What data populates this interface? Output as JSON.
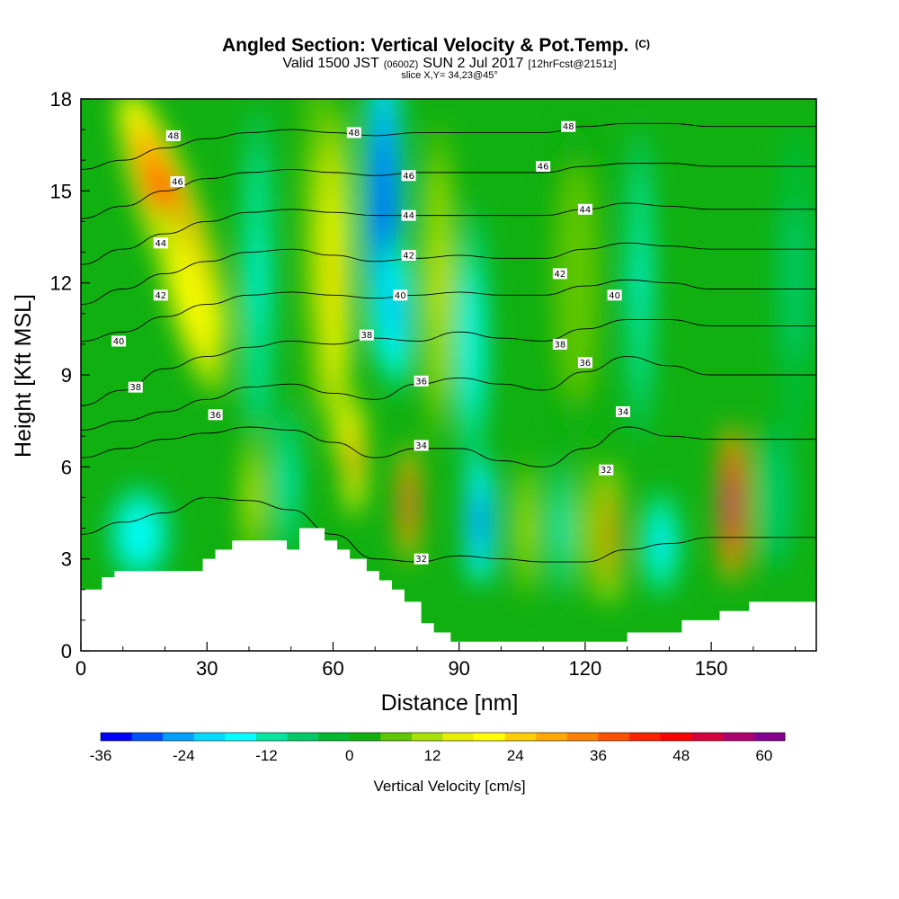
{
  "chart_data": {
    "type": "contour",
    "title": "Angled Section: Vertical Velocity & Pot.Temp.",
    "title_mark": "(C)",
    "subtitle": {
      "valid": "Valid 1500 JST",
      "utc": "(0600Z)",
      "date": "SUN 2 Jul 2017",
      "forecast": "[12hrFcst@2151z]"
    },
    "slice_label": "slice X,Y= 34,23@45°",
    "xlabel": "Distance [nm]",
    "ylabel": "Height [Kft MSL]",
    "xlim": [
      0,
      175
    ],
    "ylim": [
      0,
      18
    ],
    "x_ticks": [
      0,
      30,
      60,
      90,
      120,
      150
    ],
    "y_ticks": [
      0,
      3,
      6,
      9,
      12,
      15,
      18
    ],
    "colorbar": {
      "label": "Vertical Velocity [cm/s]",
      "min": -36,
      "max": 63,
      "step": 4.5,
      "tick_values": [
        -36,
        -24,
        -12,
        0,
        12,
        24,
        36,
        48,
        60
      ],
      "colors": [
        "#0000ff",
        "#0050ff",
        "#00a0ff",
        "#00dcff",
        "#00ffff",
        "#00e8a0",
        "#00cc66",
        "#00bb30",
        "#10b010",
        "#60c800",
        "#a8e000",
        "#e8f000",
        "#ffff00",
        "#ffd000",
        "#ffa800",
        "#ff8000",
        "#ff5000",
        "#ff2000",
        "#ff0000",
        "#d8003a",
        "#b00070",
        "#860090"
      ]
    },
    "terrain": [
      [
        0,
        2.0
      ],
      [
        5,
        2.0
      ],
      [
        5,
        2.4
      ],
      [
        8,
        2.4
      ],
      [
        8,
        2.6
      ],
      [
        29,
        2.6
      ],
      [
        29,
        3.0
      ],
      [
        32,
        3.0
      ],
      [
        32,
        3.3
      ],
      [
        36,
        3.3
      ],
      [
        36,
        3.6
      ],
      [
        49,
        3.6
      ],
      [
        49,
        3.3
      ],
      [
        52,
        3.3
      ],
      [
        52,
        4.0
      ],
      [
        58,
        4.0
      ],
      [
        58,
        3.6
      ],
      [
        61,
        3.6
      ],
      [
        61,
        3.3
      ],
      [
        64,
        3.3
      ],
      [
        64,
        3.0
      ],
      [
        68,
        3.0
      ],
      [
        68,
        2.6
      ],
      [
        71,
        2.6
      ],
      [
        71,
        2.3
      ],
      [
        74,
        2.3
      ],
      [
        74,
        2.0
      ],
      [
        77,
        2.0
      ],
      [
        77,
        1.6
      ],
      [
        81,
        1.6
      ],
      [
        81,
        0.9
      ],
      [
        84,
        0.9
      ],
      [
        84,
        0.6
      ],
      [
        88,
        0.6
      ],
      [
        88,
        0.3
      ],
      [
        130,
        0.3
      ],
      [
        130,
        0.6
      ],
      [
        143,
        0.6
      ],
      [
        143,
        1.0
      ],
      [
        152,
        1.0
      ],
      [
        152,
        1.3
      ],
      [
        159,
        1.3
      ],
      [
        159,
        1.6
      ],
      [
        175,
        1.6
      ]
    ],
    "theta_series": [
      {
        "name": "32",
        "x": [
          0,
          10,
          20,
          30,
          40,
          50,
          60,
          70,
          80,
          90,
          100,
          110,
          120,
          130,
          140,
          150,
          160,
          175
        ],
        "y": [
          3.8,
          4.2,
          4.5,
          5.0,
          4.9,
          4.6,
          3.8,
          3.0,
          2.9,
          3.1,
          3.0,
          2.9,
          2.9,
          3.3,
          3.5,
          3.7,
          3.7,
          3.7
        ]
      },
      {
        "name": "34",
        "x": [
          0,
          10,
          20,
          30,
          40,
          50,
          60,
          70,
          80,
          90,
          100,
          110,
          120,
          130,
          140,
          150,
          160,
          175
        ],
        "y": [
          6.3,
          6.6,
          6.9,
          7.1,
          7.3,
          7.2,
          6.8,
          6.3,
          6.6,
          6.6,
          6.2,
          6.0,
          6.6,
          7.3,
          7.0,
          6.9,
          6.9,
          6.9
        ]
      },
      {
        "name": "36",
        "x": [
          0,
          10,
          20,
          30,
          40,
          50,
          60,
          70,
          80,
          90,
          100,
          110,
          120,
          130,
          140,
          150,
          160,
          175
        ],
        "y": [
          7.2,
          7.5,
          7.8,
          8.2,
          8.6,
          8.7,
          8.4,
          8.2,
          8.7,
          8.9,
          8.7,
          8.5,
          9.1,
          9.6,
          9.3,
          9.0,
          9.0,
          9.0
        ]
      },
      {
        "name": "38",
        "x": [
          0,
          10,
          20,
          30,
          40,
          50,
          60,
          70,
          80,
          90,
          100,
          110,
          120,
          130,
          140,
          150,
          160,
          175
        ],
        "y": [
          8.0,
          8.5,
          9.2,
          9.6,
          9.9,
          10.1,
          10.0,
          10.2,
          10.1,
          10.4,
          10.2,
          10.1,
          10.5,
          10.8,
          10.8,
          10.6,
          10.6,
          10.6
        ]
      },
      {
        "name": "40",
        "x": [
          0,
          10,
          20,
          30,
          40,
          50,
          60,
          70,
          80,
          90,
          100,
          110,
          120,
          130,
          140,
          150,
          160,
          175
        ],
        "y": [
          10.1,
          10.4,
          10.9,
          11.3,
          11.6,
          11.7,
          11.6,
          11.5,
          11.6,
          11.7,
          11.6,
          11.6,
          11.9,
          12.1,
          12.0,
          11.8,
          11.8,
          11.8
        ]
      },
      {
        "name": "42",
        "x": [
          0,
          10,
          20,
          30,
          40,
          50,
          60,
          70,
          80,
          90,
          100,
          110,
          120,
          130,
          140,
          150,
          160,
          175
        ],
        "y": [
          11.3,
          11.8,
          12.3,
          12.7,
          13.0,
          13.1,
          12.9,
          12.7,
          12.8,
          12.9,
          12.8,
          12.8,
          13.1,
          13.3,
          13.2,
          13.1,
          13.1,
          13.1
        ]
      },
      {
        "name": "44",
        "x": [
          0,
          10,
          20,
          30,
          40,
          50,
          60,
          70,
          80,
          90,
          100,
          110,
          120,
          130,
          140,
          150,
          160,
          175
        ],
        "y": [
          12.6,
          13.1,
          13.6,
          14.0,
          14.3,
          14.4,
          14.3,
          14.2,
          14.2,
          14.2,
          14.2,
          14.2,
          14.4,
          14.6,
          14.5,
          14.4,
          14.4,
          14.4
        ]
      },
      {
        "name": "46",
        "x": [
          0,
          10,
          20,
          30,
          40,
          50,
          60,
          70,
          80,
          90,
          100,
          110,
          120,
          130,
          140,
          150,
          160,
          175
        ],
        "y": [
          14.1,
          14.5,
          15.0,
          15.4,
          15.6,
          15.7,
          15.6,
          15.5,
          15.6,
          15.6,
          15.6,
          15.6,
          15.8,
          15.9,
          15.9,
          15.8,
          15.8,
          15.8
        ]
      },
      {
        "name": "48",
        "x": [
          0,
          10,
          20,
          30,
          40,
          50,
          60,
          70,
          80,
          90,
          100,
          110,
          120,
          130,
          140,
          150,
          160,
          175
        ],
        "y": [
          15.7,
          16.0,
          16.4,
          16.7,
          16.9,
          17.0,
          16.9,
          16.8,
          16.9,
          16.9,
          16.9,
          16.9,
          17.1,
          17.2,
          17.2,
          17.1,
          17.1,
          17.1
        ]
      }
    ],
    "theta_labels": [
      {
        "text": "32",
        "x": 81,
        "y": 3.0
      },
      {
        "text": "32",
        "x": 125,
        "y": 5.9
      },
      {
        "text": "34",
        "x": 81,
        "y": 6.7
      },
      {
        "text": "34",
        "x": 129,
        "y": 7.8
      },
      {
        "text": "36",
        "x": 32,
        "y": 7.7
      },
      {
        "text": "36",
        "x": 81,
        "y": 8.8
      },
      {
        "text": "36",
        "x": 120,
        "y": 9.4
      },
      {
        "text": "38",
        "x": 13,
        "y": 8.6
      },
      {
        "text": "38",
        "x": 68,
        "y": 10.3
      },
      {
        "text": "38",
        "x": 114,
        "y": 10.0
      },
      {
        "text": "40",
        "x": 9,
        "y": 10.1
      },
      {
        "text": "40",
        "x": 76,
        "y": 11.6
      },
      {
        "text": "40",
        "x": 127,
        "y": 11.6
      },
      {
        "text": "42",
        "x": 19,
        "y": 11.6
      },
      {
        "text": "42",
        "x": 78,
        "y": 12.9
      },
      {
        "text": "42",
        "x": 114,
        "y": 12.3
      },
      {
        "text": "44",
        "x": 19,
        "y": 13.3
      },
      {
        "text": "44",
        "x": 78,
        "y": 14.2
      },
      {
        "text": "44",
        "x": 120,
        "y": 14.4
      },
      {
        "text": "46",
        "x": 23,
        "y": 15.3
      },
      {
        "text": "46",
        "x": 78,
        "y": 15.5
      },
      {
        "text": "46",
        "x": 110,
        "y": 15.8
      },
      {
        "text": "48",
        "x": 22,
        "y": 16.8
      },
      {
        "text": "48",
        "x": 65,
        "y": 16.9
      },
      {
        "text": "48",
        "x": 116,
        "y": 17.1
      }
    ],
    "vv_features": [
      {
        "x": 22,
        "y": 14.0,
        "sx": 5,
        "sy": 3.5,
        "tilt": -0.5,
        "amp": 44
      },
      {
        "x": 26,
        "y": 11.5,
        "sx": 4,
        "sy": 2.5,
        "tilt": -0.4,
        "amp": 22
      },
      {
        "x": 14,
        "y": 3.8,
        "sx": 6,
        "sy": 1.3,
        "tilt": 0.0,
        "amp": -18
      },
      {
        "x": 42,
        "y": 12.0,
        "sx": 3,
        "sy": 4.5,
        "tilt": 0.0,
        "amp": -14
      },
      {
        "x": 41,
        "y": 5.0,
        "sx": 1.8,
        "sy": 1.8,
        "tilt": 0.0,
        "amp": 18
      },
      {
        "x": 49,
        "y": 5.5,
        "sx": 2.2,
        "sy": 2.0,
        "tilt": 0.0,
        "amp": -16
      },
      {
        "x": 56,
        "y": 13.5,
        "sx": 2.5,
        "sy": 4.5,
        "tilt": 0.0,
        "amp": 12
      },
      {
        "x": 61,
        "y": 12.0,
        "sx": 2.5,
        "sy": 4.5,
        "tilt": 0.0,
        "amp": 26
      },
      {
        "x": 65,
        "y": 6.3,
        "sx": 2.0,
        "sy": 1.5,
        "tilt": 0.0,
        "amp": 34
      },
      {
        "x": 72,
        "y": 14.5,
        "sx": 3.5,
        "sy": 4.0,
        "tilt": 0.0,
        "amp": -36
      },
      {
        "x": 75,
        "y": 11.0,
        "sx": 3.0,
        "sy": 2.0,
        "tilt": 0.0,
        "amp": -24
      },
      {
        "x": 78,
        "y": 4.8,
        "sx": 1.8,
        "sy": 1.5,
        "tilt": 0.0,
        "amp": 52
      },
      {
        "x": 85,
        "y": 12.0,
        "sx": 3.0,
        "sy": 4.0,
        "tilt": 0.0,
        "amp": 14
      },
      {
        "x": 93,
        "y": 10.0,
        "sx": 3.0,
        "sy": 3.5,
        "tilt": 0.0,
        "amp": -18
      },
      {
        "x": 95,
        "y": 4.2,
        "sx": 2.8,
        "sy": 1.6,
        "tilt": 0.0,
        "amp": -30
      },
      {
        "x": 106,
        "y": 4.0,
        "sx": 2.0,
        "sy": 1.8,
        "tilt": 0.0,
        "amp": 16
      },
      {
        "x": 114,
        "y": 4.0,
        "sx": 2.0,
        "sy": 1.8,
        "tilt": 0.0,
        "amp": -16
      },
      {
        "x": 120,
        "y": 4.0,
        "sx": 1.8,
        "sy": 1.8,
        "tilt": 0.0,
        "amp": 12
      },
      {
        "x": 118,
        "y": 12.0,
        "sx": 5,
        "sy": 4,
        "tilt": 0.0,
        "amp": 8
      },
      {
        "x": 126,
        "y": 3.8,
        "sx": 1.6,
        "sy": 1.8,
        "tilt": 0.0,
        "amp": 42
      },
      {
        "x": 133,
        "y": 12.0,
        "sx": 2.5,
        "sy": 4.0,
        "tilt": 0.0,
        "amp": -14
      },
      {
        "x": 138,
        "y": 3.5,
        "sx": 3.5,
        "sy": 1.3,
        "tilt": 0.0,
        "amp": -20
      },
      {
        "x": 155,
        "y": 4.8,
        "sx": 2.5,
        "sy": 2.0,
        "tilt": 0.0,
        "amp": 62
      },
      {
        "x": 165,
        "y": 5.0,
        "sx": 4.0,
        "sy": 2.0,
        "tilt": 0.0,
        "amp": -8
      },
      {
        "x": 170,
        "y": 12.0,
        "sx": 4.0,
        "sy": 4.0,
        "tilt": 0.0,
        "amp": -6
      }
    ]
  }
}
